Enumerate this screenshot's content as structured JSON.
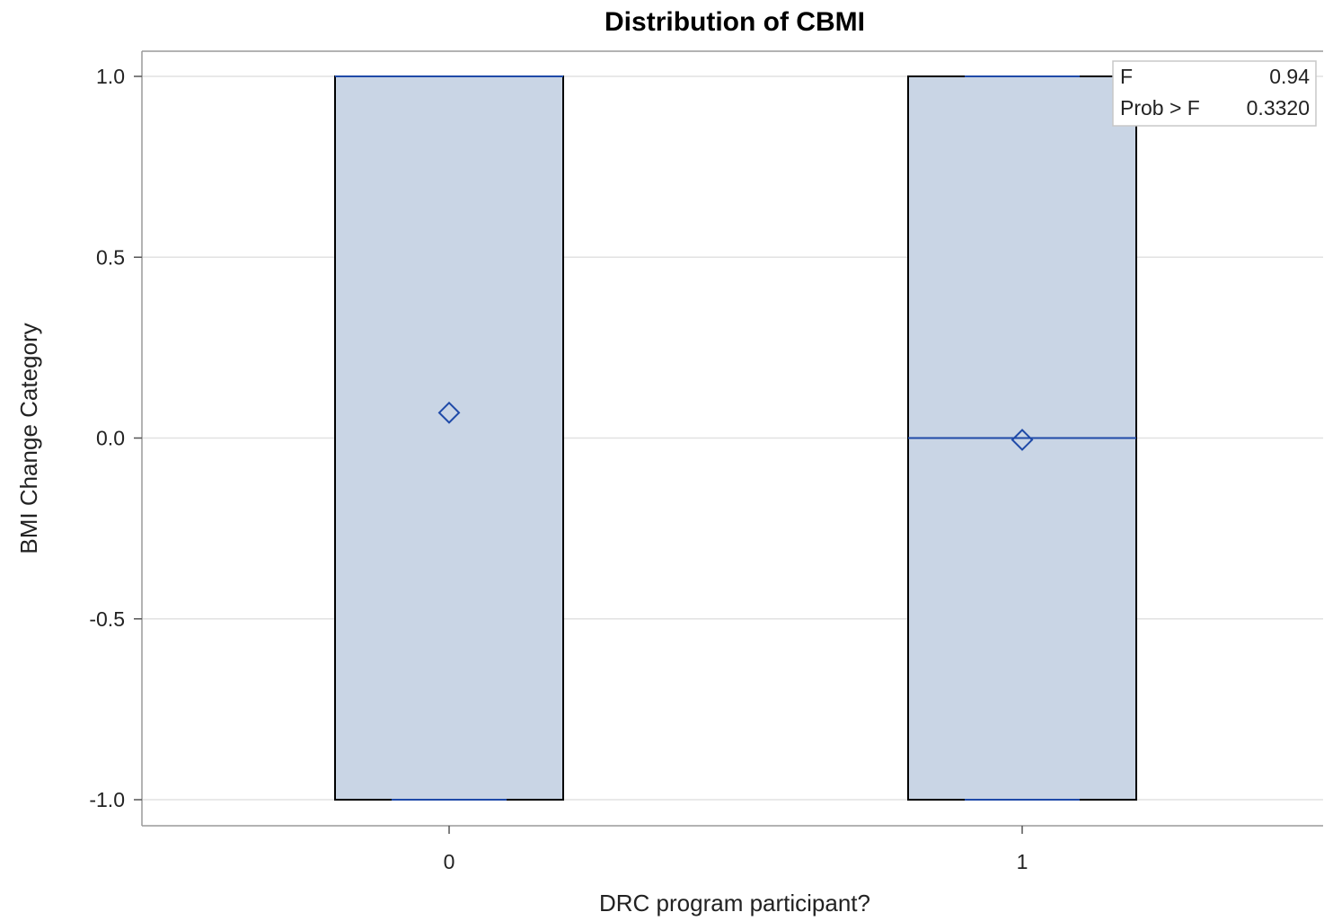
{
  "chart_data": {
    "type": "box",
    "title": "Distribution of CBMI",
    "xlabel": "DRC program participant?",
    "ylabel": "BMI Change Category",
    "categories": [
      "0",
      "1"
    ],
    "ylim": [
      -1.07,
      1.07
    ],
    "yticks": [
      1.0,
      0.5,
      0.0,
      -0.5,
      -1.0
    ],
    "ytick_labels": [
      "1.0",
      "0.5",
      "0.0",
      "-0.5",
      "-1.0"
    ],
    "grid": true,
    "boxes": [
      {
        "category": "0",
        "q1": -1.0,
        "median": 1.0,
        "q3": 1.0,
        "mean": 0.07,
        "whisker_low": -1.0,
        "whisker_high": 1.0
      },
      {
        "category": "1",
        "q1": -1.0,
        "median": 0.0,
        "q3": 1.0,
        "mean": -0.005,
        "whisker_low": -1.0,
        "whisker_high": 1.0
      }
    ],
    "stats": [
      {
        "label": "F",
        "value": "0.94"
      },
      {
        "label": "Prob > F",
        "value": "0.3320"
      }
    ],
    "stats_placement": "top-right",
    "colors": {
      "box_fill": "#c9d5e5",
      "box_border": "#000000",
      "median": "#1f4aa8",
      "mean_marker": "#1f4aa8",
      "grid": "#e2e2e2",
      "frame": "#9a9a9a"
    }
  }
}
